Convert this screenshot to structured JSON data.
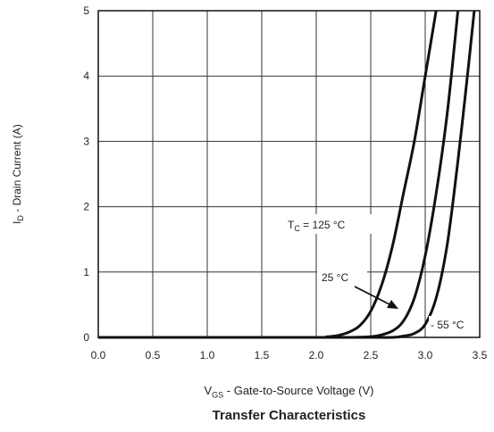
{
  "chart_data": {
    "type": "line",
    "title": "Transfer Characteristics",
    "xlabel": {
      "main": "V",
      "sub": "GS",
      "rest": " - Gate-to-Source Voltage (V)"
    },
    "ylabel": {
      "main": "I",
      "sub": "D",
      "rest": " - Drain Current (A)"
    },
    "xlim": [
      0.0,
      3.5
    ],
    "ylim": [
      0,
      5
    ],
    "x_ticks": [
      "0.0",
      "0.5",
      "1.0",
      "1.5",
      "2.0",
      "2.5",
      "3.0",
      "3.5"
    ],
    "y_ticks": [
      "0",
      "1",
      "2",
      "3",
      "4",
      "5"
    ],
    "grid": true,
    "series": [
      {
        "name": "T_C = 125 °C",
        "x": [
          0.0,
          1.0,
          2.0,
          2.1,
          2.2,
          2.3,
          2.4,
          2.5,
          2.6,
          2.7,
          2.8,
          2.9,
          3.0,
          3.1
        ],
        "y": [
          0.0,
          0.0,
          0.0,
          0.01,
          0.03,
          0.08,
          0.18,
          0.4,
          0.8,
          1.4,
          2.2,
          3.0,
          4.0,
          5.0
        ]
      },
      {
        "name": "25 °C",
        "x": [
          0.0,
          1.0,
          2.0,
          2.3,
          2.5,
          2.6,
          2.7,
          2.8,
          2.9,
          3.0,
          3.1,
          3.2,
          3.3
        ],
        "y": [
          0.0,
          0.0,
          0.0,
          0.0,
          0.01,
          0.04,
          0.1,
          0.25,
          0.6,
          1.25,
          2.2,
          3.4,
          5.0
        ]
      },
      {
        "name": "- 55 °C",
        "x": [
          0.0,
          1.0,
          2.0,
          2.5,
          2.7,
          2.8,
          2.9,
          3.0,
          3.1,
          3.2,
          3.3,
          3.4,
          3.45
        ],
        "y": [
          0.0,
          0.0,
          0.0,
          0.0,
          0.0,
          0.02,
          0.06,
          0.2,
          0.6,
          1.4,
          2.7,
          4.2,
          5.0
        ]
      }
    ],
    "annotations": {
      "tc": {
        "main": "T",
        "sub": "C",
        "rest": " = 125 °C"
      },
      "t25": "25 °C",
      "tm55": "- 55 °C"
    }
  }
}
